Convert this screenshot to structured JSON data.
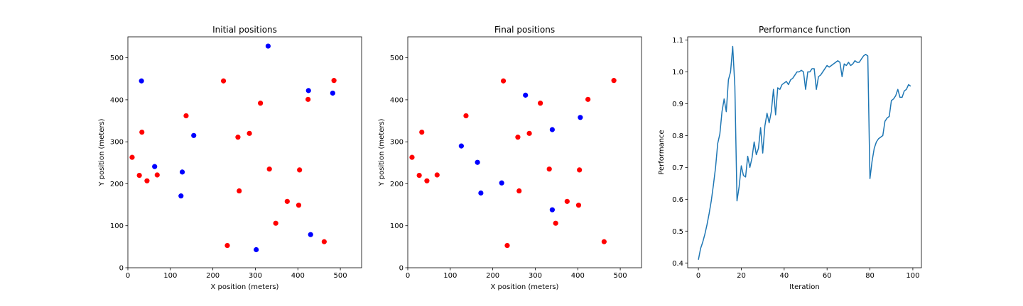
{
  "chart_data": [
    {
      "type": "scatter",
      "title": "Initial positions",
      "xlabel": "X position (meters)",
      "ylabel": "Y position (meters)",
      "xlim": [
        0,
        550
      ],
      "ylim": [
        0,
        550
      ],
      "xticks": [
        "0",
        "100",
        "200",
        "300",
        "400",
        "500"
      ],
      "yticks": [
        "0",
        "100",
        "200",
        "300",
        "400",
        "500"
      ],
      "grid": false,
      "series": [
        {
          "color": "#0000ff",
          "points": [
            [
              32,
              445
            ],
            [
              330,
              528
            ],
            [
              425,
              422
            ],
            [
              482,
              416
            ],
            [
              155,
              315
            ],
            [
              63,
              241
            ],
            [
              128,
              228
            ],
            [
              125,
              171
            ],
            [
              430,
              79
            ],
            [
              302,
              43
            ]
          ]
        },
        {
          "color": "#ff0000",
          "points": [
            [
              225,
              445
            ],
            [
              485,
              446
            ],
            [
              424,
              401
            ],
            [
              312,
              392
            ],
            [
              137,
              362
            ],
            [
              33,
              323
            ],
            [
              286,
              320
            ],
            [
              259,
              311
            ],
            [
              10,
              263
            ],
            [
              27,
              220
            ],
            [
              69,
              221
            ],
            [
              45,
              207
            ],
            [
              333,
              235
            ],
            [
              404,
              233
            ],
            [
              262,
              183
            ],
            [
              375,
              158
            ],
            [
              402,
              149
            ],
            [
              348,
              106
            ],
            [
              234,
              53
            ],
            [
              462,
              62
            ]
          ]
        }
      ]
    },
    {
      "type": "scatter",
      "title": "Final positions",
      "xlabel": "X position (meters)",
      "ylabel": "Y position (meters)",
      "xlim": [
        0,
        550
      ],
      "ylim": [
        0,
        550
      ],
      "xticks": [
        "0",
        "100",
        "200",
        "300",
        "400",
        "500"
      ],
      "yticks": [
        "0",
        "100",
        "200",
        "300",
        "400",
        "500"
      ],
      "grid": false,
      "series": [
        {
          "color": "#0000ff",
          "points": [
            [
              277,
              411
            ],
            [
              340,
              329
            ],
            [
              406,
              358
            ],
            [
              126,
              290
            ],
            [
              164,
              251
            ],
            [
              172,
              178
            ],
            [
              221,
              202
            ],
            [
              340,
              138
            ]
          ]
        },
        {
          "color": "#ff0000",
          "points": [
            [
              225,
              445
            ],
            [
              485,
              446
            ],
            [
              424,
              401
            ],
            [
              312,
              392
            ],
            [
              137,
              362
            ],
            [
              33,
              323
            ],
            [
              286,
              320
            ],
            [
              259,
              311
            ],
            [
              10,
              263
            ],
            [
              27,
              220
            ],
            [
              69,
              221
            ],
            [
              45,
              207
            ],
            [
              333,
              235
            ],
            [
              404,
              233
            ],
            [
              262,
              183
            ],
            [
              375,
              158
            ],
            [
              402,
              149
            ],
            [
              348,
              106
            ],
            [
              234,
              53
            ],
            [
              462,
              62
            ]
          ]
        }
      ]
    },
    {
      "type": "line",
      "title": "Performance function",
      "xlabel": "Iteration",
      "ylabel": "Performance",
      "xlim": [
        -5,
        104
      ],
      "ylim": [
        0.385,
        1.11
      ],
      "xticks": [
        "0",
        "20",
        "40",
        "60",
        "80",
        "100"
      ],
      "yticks": [
        "0.4",
        "0.5",
        "0.6",
        "0.7",
        "0.8",
        "0.9",
        "1.0",
        "1.1"
      ],
      "grid": false,
      "series": [
        {
          "color": "#1f77b4",
          "x": [
            0,
            1,
            2,
            3,
            4,
            5,
            6,
            7,
            8,
            9,
            10,
            11,
            12,
            13,
            14,
            15,
            16,
            17,
            18,
            19,
            20,
            21,
            22,
            23,
            24,
            25,
            26,
            27,
            28,
            29,
            30,
            31,
            32,
            33,
            34,
            35,
            36,
            37,
            38,
            39,
            40,
            41,
            42,
            43,
            44,
            45,
            46,
            47,
            48,
            49,
            50,
            51,
            52,
            53,
            54,
            55,
            56,
            57,
            58,
            59,
            60,
            61,
            62,
            63,
            64,
            65,
            66,
            67,
            68,
            69,
            70,
            71,
            72,
            73,
            74,
            75,
            76,
            77,
            78,
            79,
            80,
            81,
            82,
            83,
            84,
            85,
            86,
            87,
            88,
            89,
            90,
            91,
            92,
            93,
            94,
            95,
            96,
            97,
            98,
            99
          ],
          "y": [
            0.41,
            0.445,
            0.465,
            0.49,
            0.52,
            0.555,
            0.595,
            0.645,
            0.7,
            0.775,
            0.805,
            0.875,
            0.915,
            0.875,
            0.975,
            1.0,
            1.08,
            0.955,
            0.595,
            0.64,
            0.705,
            0.675,
            0.67,
            0.735,
            0.7,
            0.73,
            0.78,
            0.74,
            0.76,
            0.825,
            0.745,
            0.83,
            0.87,
            0.84,
            0.875,
            0.945,
            0.865,
            0.95,
            0.945,
            0.96,
            0.965,
            0.97,
            0.96,
            0.975,
            0.98,
            0.99,
            1.0,
            1.0,
            1.005,
            1.0,
            0.945,
            1.0,
            1.0,
            1.01,
            1.01,
            0.945,
            0.985,
            0.99,
            1.0,
            1.01,
            1.02,
            1.015,
            1.02,
            1.025,
            1.03,
            1.035,
            1.03,
            0.985,
            1.025,
            1.02,
            1.03,
            1.02,
            1.025,
            1.035,
            1.03,
            1.03,
            1.04,
            1.05,
            1.055,
            1.05,
            0.665,
            0.72,
            0.76,
            0.78,
            0.79,
            0.795,
            0.8,
            0.845,
            0.855,
            0.86,
            0.91,
            0.915,
            0.925,
            0.945,
            0.92,
            0.92,
            0.94,
            0.945,
            0.96,
            0.955
          ]
        }
      ]
    }
  ]
}
